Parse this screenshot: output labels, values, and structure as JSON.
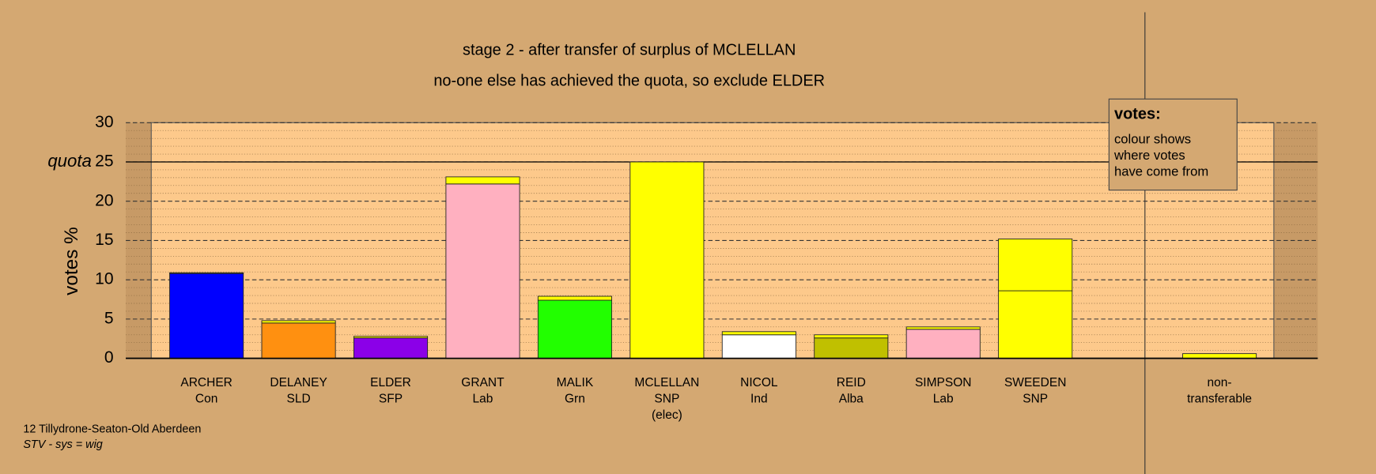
{
  "chart_data": {
    "type": "bar",
    "title": "stage 2 - after transfer of surplus of MCLELLAN",
    "subtitle": "no-one else has achieved the quota, so exclude ELDER",
    "ylabel": "votes %",
    "ylim": [
      0,
      30
    ],
    "yticks": [
      0,
      5,
      10,
      15,
      20,
      25,
      30
    ],
    "grid": true,
    "quota": 25,
    "quota_label": "quota",
    "bars": [
      {
        "lines": [
          "ARCHER",
          "Con"
        ],
        "segments": [
          {
            "value": 10.8,
            "color": "#0000ff"
          },
          {
            "value": 0.1,
            "color": "#ffff00"
          }
        ]
      },
      {
        "lines": [
          "DELANEY",
          "SLD"
        ],
        "segments": [
          {
            "value": 4.5,
            "color": "#ff9010"
          },
          {
            "value": 0.3,
            "color": "#ffff00"
          }
        ]
      },
      {
        "lines": [
          "ELDER",
          "SFP"
        ],
        "segments": [
          {
            "value": 2.6,
            "color": "#8b00e8"
          },
          {
            "value": 0.2,
            "color": "#ffff00"
          }
        ]
      },
      {
        "lines": [
          "GRANT",
          "Lab"
        ],
        "segments": [
          {
            "value": 22.2,
            "color": "#ffb0c0"
          },
          {
            "value": 0.9,
            "color": "#ffff00"
          }
        ]
      },
      {
        "lines": [
          "MALIK",
          "Grn"
        ],
        "segments": [
          {
            "value": 7.4,
            "color": "#22ff00"
          },
          {
            "value": 0.5,
            "color": "#ffff00"
          }
        ]
      },
      {
        "lines": [
          "MCLELLAN",
          "SNP",
          "(elec)"
        ],
        "segments": [
          {
            "value": 25,
            "color": "#ffff00"
          }
        ]
      },
      {
        "lines": [
          "NICOL",
          "Ind"
        ],
        "segments": [
          {
            "value": 3.0,
            "color": "#ffffff"
          },
          {
            "value": 0.4,
            "color": "#ffff00"
          }
        ]
      },
      {
        "lines": [
          "REID",
          "Alba"
        ],
        "segments": [
          {
            "value": 2.6,
            "color": "#c0c000"
          },
          {
            "value": 0.4,
            "color": "#ffff00"
          }
        ]
      },
      {
        "lines": [
          "SIMPSON",
          "Lab"
        ],
        "segments": [
          {
            "value": 3.7,
            "color": "#ffb0c0"
          },
          {
            "value": 0.3,
            "color": "#ffff00"
          }
        ]
      },
      {
        "lines": [
          "SWEEDEN",
          "SNP"
        ],
        "segments": [
          {
            "value": 8.6,
            "color": "#ffff00"
          },
          {
            "value": 6.6,
            "color": "#ffff00"
          }
        ]
      },
      {
        "lines": [
          "non-",
          "transferable"
        ],
        "segments": [
          {
            "value": 0.6,
            "color": "#ffff00"
          }
        ]
      }
    ],
    "note_box": [
      "votes:",
      "colour shows",
      "where votes",
      "have come from"
    ],
    "footer": [
      "12 Tillydrone-Seaton-Old Aberdeen",
      "STV - sys = wig"
    ]
  }
}
